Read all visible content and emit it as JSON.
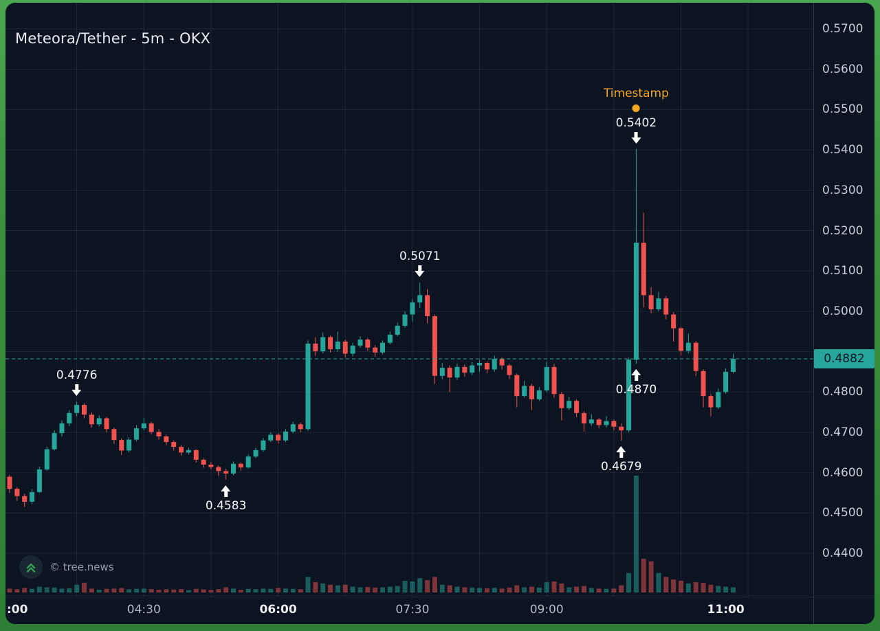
{
  "header": {
    "title": "Meteora/Tether - 5m - OKX"
  },
  "watermark": {
    "label": "© tree.news"
  },
  "price_tag": {
    "value": "0.4882"
  },
  "colors": {
    "background": "#0d1421",
    "frame_green": "#3b9040",
    "up": "#26a69a",
    "down": "#ef5350",
    "vol_up": "rgba(38,166,154,0.5)",
    "vol_down": "rgba(239,83,80,0.5)",
    "grid": "rgba(82,104,138,0.22)",
    "separator": "#2a3443",
    "last_price_line": "#26a69a",
    "tag_bg": "#26a69a",
    "tag_text": "#0b1422",
    "annotation_text": "#f5f7fa",
    "timestamp_marker": "#f5a623"
  },
  "axes": {
    "price_labels": [
      "0.5700",
      "0.5600",
      "0.5500",
      "0.5400",
      "0.5300",
      "0.5200",
      "0.5100",
      "0.5000",
      "0.4800",
      "0.4700",
      "0.4600",
      "0.4500",
      "0.4400"
    ],
    "time_labels": [
      {
        "label": ":00",
        "index": 0,
        "strong": true
      },
      {
        "label": "04:30",
        "index": 18,
        "strong": false
      },
      {
        "label": "06:00",
        "index": 36,
        "strong": true
      },
      {
        "label": "07:30",
        "index": 54,
        "strong": false
      },
      {
        "label": "09:00",
        "index": 72,
        "strong": false
      },
      {
        "label": "11:00",
        "index": 96,
        "strong": true
      }
    ]
  },
  "chart_data": {
    "type": "candlestick",
    "pair": "Meteora/Tether",
    "interval": "5m",
    "exchange": "OKX",
    "title": "Meteora/Tether - 5m - OKX",
    "start_time": "03:00",
    "step_minutes": 5,
    "last_price": 0.4882,
    "visible_price_range": [
      0.44,
      0.57
    ],
    "columns": [
      "open",
      "high",
      "low",
      "close",
      "volume"
    ],
    "candles": [
      [
        0.459,
        0.4595,
        0.455,
        0.456,
        30
      ],
      [
        0.456,
        0.4565,
        0.453,
        0.4542,
        25
      ],
      [
        0.4542,
        0.4548,
        0.4515,
        0.4528,
        35
      ],
      [
        0.4528,
        0.456,
        0.4522,
        0.4552,
        28
      ],
      [
        0.4552,
        0.4615,
        0.455,
        0.4608,
        45
      ],
      [
        0.4608,
        0.4665,
        0.4605,
        0.4658,
        40
      ],
      [
        0.4658,
        0.4705,
        0.4655,
        0.4698,
        38
      ],
      [
        0.4698,
        0.473,
        0.469,
        0.4722,
        30
      ],
      [
        0.4722,
        0.4755,
        0.4715,
        0.4748,
        32
      ],
      [
        0.4748,
        0.4776,
        0.474,
        0.4768,
        60
      ],
      [
        0.4768,
        0.4772,
        0.4735,
        0.4744,
        75
      ],
      [
        0.4744,
        0.475,
        0.4712,
        0.472,
        30
      ],
      [
        0.472,
        0.4742,
        0.4715,
        0.4735,
        22
      ],
      [
        0.4735,
        0.4738,
        0.47,
        0.4708,
        28
      ],
      [
        0.4708,
        0.4712,
        0.4672,
        0.4681,
        30
      ],
      [
        0.4681,
        0.4685,
        0.4644,
        0.4655,
        35
      ],
      [
        0.4655,
        0.4688,
        0.465,
        0.4682,
        25
      ],
      [
        0.4682,
        0.4718,
        0.4678,
        0.471,
        28
      ],
      [
        0.471,
        0.4736,
        0.4705,
        0.4722,
        30
      ],
      [
        0.4722,
        0.4726,
        0.4695,
        0.4701,
        26
      ],
      [
        0.4701,
        0.4708,
        0.4682,
        0.469,
        22
      ],
      [
        0.469,
        0.4694,
        0.4668,
        0.4676,
        25
      ],
      [
        0.4676,
        0.468,
        0.4655,
        0.4664,
        24
      ],
      [
        0.4664,
        0.4668,
        0.4642,
        0.465,
        26
      ],
      [
        0.465,
        0.4662,
        0.4645,
        0.4656,
        18
      ],
      [
        0.4656,
        0.4658,
        0.4625,
        0.4632,
        28
      ],
      [
        0.4632,
        0.4636,
        0.4612,
        0.462,
        24
      ],
      [
        0.462,
        0.4626,
        0.4608,
        0.4614,
        20
      ],
      [
        0.4614,
        0.4618,
        0.4592,
        0.4604,
        26
      ],
      [
        0.4604,
        0.461,
        0.4583,
        0.4598,
        40
      ],
      [
        0.4598,
        0.4628,
        0.4594,
        0.4622,
        30
      ],
      [
        0.4622,
        0.4626,
        0.4605,
        0.4613,
        20
      ],
      [
        0.4613,
        0.4645,
        0.461,
        0.464,
        28
      ],
      [
        0.464,
        0.4662,
        0.4636,
        0.4656,
        26
      ],
      [
        0.4656,
        0.4686,
        0.4652,
        0.468,
        30
      ],
      [
        0.468,
        0.47,
        0.4676,
        0.4694,
        28
      ],
      [
        0.4694,
        0.4698,
        0.4672,
        0.468,
        35
      ],
      [
        0.468,
        0.4708,
        0.4676,
        0.4702,
        30
      ],
      [
        0.4702,
        0.4726,
        0.4698,
        0.472,
        28
      ],
      [
        0.472,
        0.4724,
        0.47,
        0.4708,
        25
      ],
      [
        0.4708,
        0.4928,
        0.4704,
        0.492,
        120
      ],
      [
        0.492,
        0.4935,
        0.489,
        0.4901,
        80
      ],
      [
        0.4901,
        0.4948,
        0.4896,
        0.4936,
        70
      ],
      [
        0.4936,
        0.494,
        0.4898,
        0.4906,
        60
      ],
      [
        0.4906,
        0.495,
        0.49,
        0.4925,
        55
      ],
      [
        0.4925,
        0.493,
        0.4885,
        0.4895,
        60
      ],
      [
        0.4895,
        0.4922,
        0.4888,
        0.4915,
        45
      ],
      [
        0.4915,
        0.4938,
        0.491,
        0.493,
        40
      ],
      [
        0.493,
        0.4934,
        0.4902,
        0.491,
        42
      ],
      [
        0.491,
        0.4916,
        0.4888,
        0.4898,
        38
      ],
      [
        0.4898,
        0.4928,
        0.4894,
        0.4922,
        40
      ],
      [
        0.4922,
        0.495,
        0.4918,
        0.4942,
        45
      ],
      [
        0.4942,
        0.4972,
        0.4938,
        0.4964,
        50
      ],
      [
        0.4964,
        0.5,
        0.496,
        0.4992,
        90
      ],
      [
        0.4992,
        0.503,
        0.4975,
        0.5022,
        85
      ],
      [
        0.5022,
        0.5071,
        0.5008,
        0.504,
        110
      ],
      [
        0.504,
        0.5055,
        0.497,
        0.4988,
        95
      ],
      [
        0.4988,
        0.4992,
        0.482,
        0.484,
        120
      ],
      [
        0.484,
        0.4872,
        0.4832,
        0.486,
        60
      ],
      [
        0.486,
        0.4866,
        0.48,
        0.4836,
        55
      ],
      [
        0.4836,
        0.487,
        0.483,
        0.4862,
        45
      ],
      [
        0.4862,
        0.4868,
        0.4838,
        0.4848,
        40
      ],
      [
        0.4848,
        0.4874,
        0.4842,
        0.4866,
        38
      ],
      [
        0.4866,
        0.488,
        0.485,
        0.4872,
        35
      ],
      [
        0.4872,
        0.4876,
        0.4846,
        0.4856,
        32
      ],
      [
        0.4856,
        0.489,
        0.485,
        0.4882,
        36
      ],
      [
        0.4882,
        0.4886,
        0.4856,
        0.4866,
        30
      ],
      [
        0.4866,
        0.487,
        0.4832,
        0.4842,
        38
      ],
      [
        0.4842,
        0.4846,
        0.4762,
        0.479,
        55
      ],
      [
        0.479,
        0.4828,
        0.4786,
        0.4815,
        40
      ],
      [
        0.4815,
        0.482,
        0.4755,
        0.4782,
        45
      ],
      [
        0.4782,
        0.4812,
        0.4778,
        0.4804,
        38
      ],
      [
        0.4804,
        0.4875,
        0.48,
        0.4862,
        80
      ],
      [
        0.4862,
        0.487,
        0.4786,
        0.4795,
        85
      ],
      [
        0.4795,
        0.48,
        0.473,
        0.476,
        70
      ],
      [
        0.476,
        0.4788,
        0.4755,
        0.4778,
        40
      ],
      [
        0.4778,
        0.4782,
        0.4738,
        0.4748,
        45
      ],
      [
        0.4748,
        0.4752,
        0.4702,
        0.4722,
        50
      ],
      [
        0.4722,
        0.4745,
        0.4716,
        0.4732,
        35
      ],
      [
        0.4732,
        0.4736,
        0.471,
        0.4718,
        30
      ],
      [
        0.4718,
        0.474,
        0.4712,
        0.4728,
        28
      ],
      [
        0.4728,
        0.4732,
        0.4705,
        0.4714,
        30
      ],
      [
        0.4714,
        0.4722,
        0.4679,
        0.4705,
        55
      ],
      [
        0.4705,
        0.4885,
        0.47,
        0.488,
        150
      ],
      [
        0.488,
        0.5402,
        0.487,
        0.517,
        900
      ],
      [
        0.517,
        0.5245,
        0.501,
        0.504,
        260
      ],
      [
        0.504,
        0.506,
        0.4995,
        0.5005,
        240
      ],
      [
        0.5005,
        0.5048,
        0.5,
        0.5032,
        150
      ],
      [
        0.5032,
        0.5038,
        0.498,
        0.4992,
        120
      ],
      [
        0.4992,
        0.4998,
        0.4925,
        0.4958,
        100
      ],
      [
        0.4958,
        0.4962,
        0.489,
        0.4902,
        90
      ],
      [
        0.4902,
        0.4945,
        0.4896,
        0.4922,
        70
      ],
      [
        0.4922,
        0.4926,
        0.484,
        0.4852,
        80
      ],
      [
        0.4852,
        0.4856,
        0.4762,
        0.479,
        75
      ],
      [
        0.479,
        0.4795,
        0.474,
        0.4762,
        60
      ],
      [
        0.4762,
        0.4808,
        0.4758,
        0.48,
        50
      ],
      [
        0.48,
        0.4858,
        0.4796,
        0.485,
        45
      ],
      [
        0.485,
        0.4895,
        0.4846,
        0.4882,
        40
      ]
    ],
    "annotations": [
      {
        "label": "0.4776",
        "kind": "high",
        "index": 9,
        "price": 0.4776
      },
      {
        "label": "0.4583",
        "kind": "low",
        "index": 29,
        "price": 0.4583
      },
      {
        "label": "0.5071",
        "kind": "high",
        "index": 55,
        "price": 0.5071
      },
      {
        "label": "0.5402",
        "kind": "high",
        "index": 84,
        "price": 0.5402,
        "marker_label": "Timestamp"
      },
      {
        "label": "0.4870",
        "kind": "low",
        "index": 84,
        "price": 0.487
      },
      {
        "label": "0.4679",
        "kind": "low",
        "index": 82,
        "price": 0.4679
      }
    ]
  }
}
